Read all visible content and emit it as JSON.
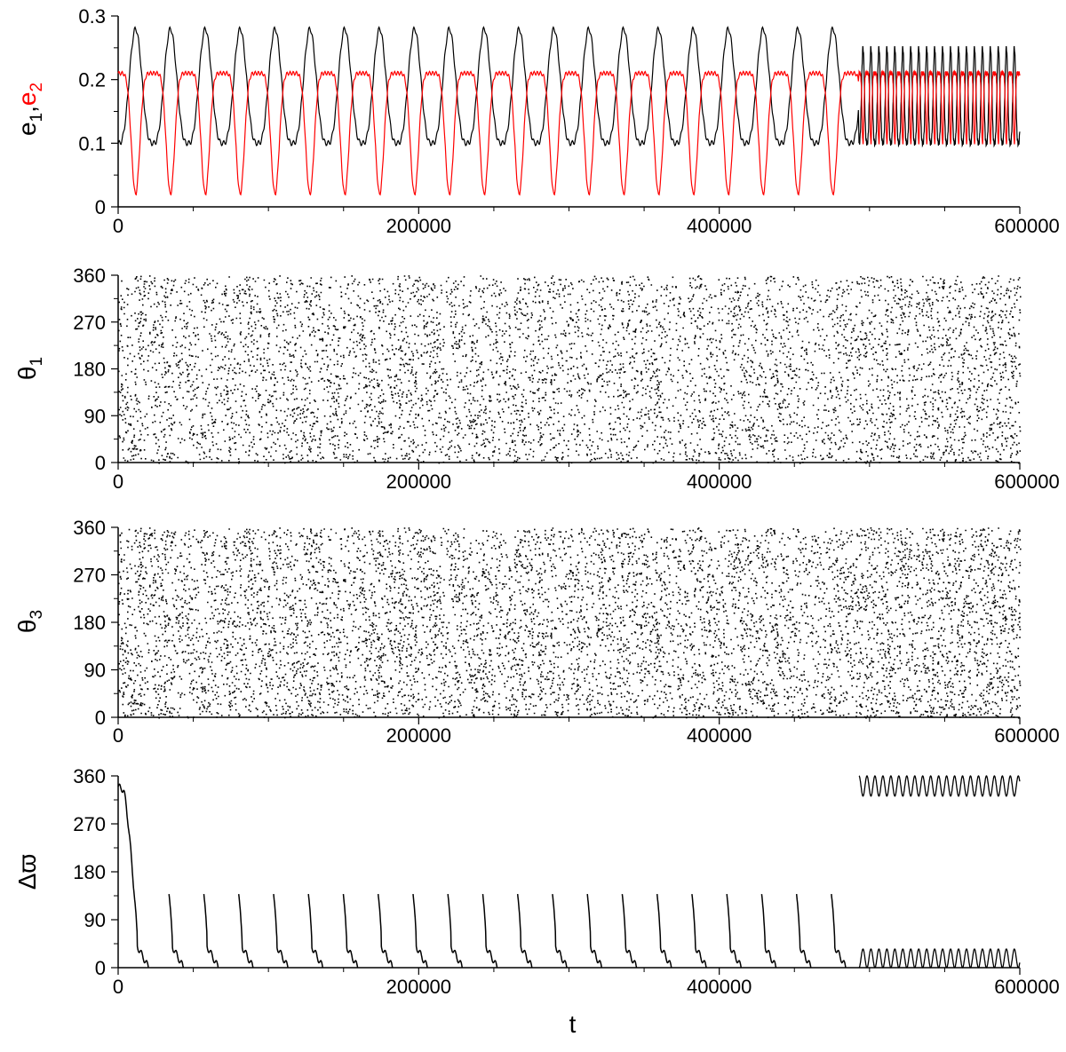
{
  "figure": {
    "colors": {
      "black": "#000000",
      "red": "#ff0000"
    }
  },
  "chart_data": [
    {
      "id": "panel-e",
      "type": "line",
      "ylabel_parts": [
        {
          "text": "e",
          "color": "#000000"
        },
        {
          "sub": "1",
          "color": "#000000"
        },
        {
          "text": ",",
          "color": "#000000"
        },
        {
          "text": "e",
          "color": "#ff0000"
        },
        {
          "sub": "2",
          "color": "#ff0000"
        }
      ],
      "xlabel": "",
      "xlim": [
        0,
        600000
      ],
      "ylim": [
        0,
        0.3
      ],
      "yticks": [
        "0",
        "0.1",
        "0.2",
        "0.3"
      ],
      "xticks": [
        "0",
        "200000",
        "400000",
        "600000"
      ],
      "series": [
        {
          "color": "#000000",
          "segments": [
            {
              "t0": 0,
              "t1": 493000,
              "period": 23200,
              "min": 0.1,
              "max": 0.28,
              "shape": "peak"
            },
            {
              "t0": 493000,
              "t1": 600000,
              "period": 5300,
              "min": 0.1,
              "max": 0.25,
              "shape": "peak"
            }
          ]
        },
        {
          "color": "#ff0000",
          "segments": [
            {
              "t0": 0,
              "t1": 493000,
              "period": 23200,
              "min": 0.02,
              "max": 0.21,
              "shape": "dip"
            },
            {
              "t0": 493000,
              "t1": 600000,
              "period": 5300,
              "min": 0.1,
              "max": 0.21,
              "shape": "dip"
            }
          ]
        }
      ],
      "grid": false
    },
    {
      "id": "panel-theta1",
      "type": "scatter",
      "ylabel_parts": [
        {
          "text": "θ",
          "color": "#000000"
        },
        {
          "sub": "1",
          "color": "#000000"
        }
      ],
      "xlim": [
        0,
        600000
      ],
      "ylim": [
        0,
        360
      ],
      "yticks": [
        "0",
        "90",
        "180",
        "270",
        "360"
      ],
      "xticks": [
        "0",
        "200000",
        "400000",
        "600000"
      ],
      "gap_period": 23200,
      "gap_transition": 493000,
      "grid": false
    },
    {
      "id": "panel-theta3",
      "type": "scatter",
      "ylabel_parts": [
        {
          "text": "θ",
          "color": "#000000"
        },
        {
          "sub": "3",
          "color": "#000000"
        }
      ],
      "xlim": [
        0,
        600000
      ],
      "ylim": [
        0,
        360
      ],
      "yticks": [
        "0",
        "90",
        "180",
        "270",
        "360"
      ],
      "xticks": [
        "0",
        "200000",
        "400000",
        "600000"
      ],
      "gap_period": 23200,
      "gap_transition": 493000,
      "grid": false
    },
    {
      "id": "panel-dvarpi",
      "type": "line",
      "ylabel_parts": [
        {
          "text": "Δϖ",
          "color": "#000000"
        }
      ],
      "xlabel": "t",
      "xlim": [
        0,
        600000
      ],
      "ylim": [
        0,
        360
      ],
      "yticks": [
        "0",
        "90",
        "180",
        "270",
        "360"
      ],
      "xticks": [
        "0",
        "200000",
        "400000",
        "600000"
      ],
      "circulation": {
        "t0": 0,
        "t1": 493000,
        "period": 23200
      },
      "libration": {
        "t0": 493000,
        "t1": 600000,
        "period": 5300,
        "low_max": 35,
        "high_min": 322
      },
      "grid": false
    }
  ]
}
